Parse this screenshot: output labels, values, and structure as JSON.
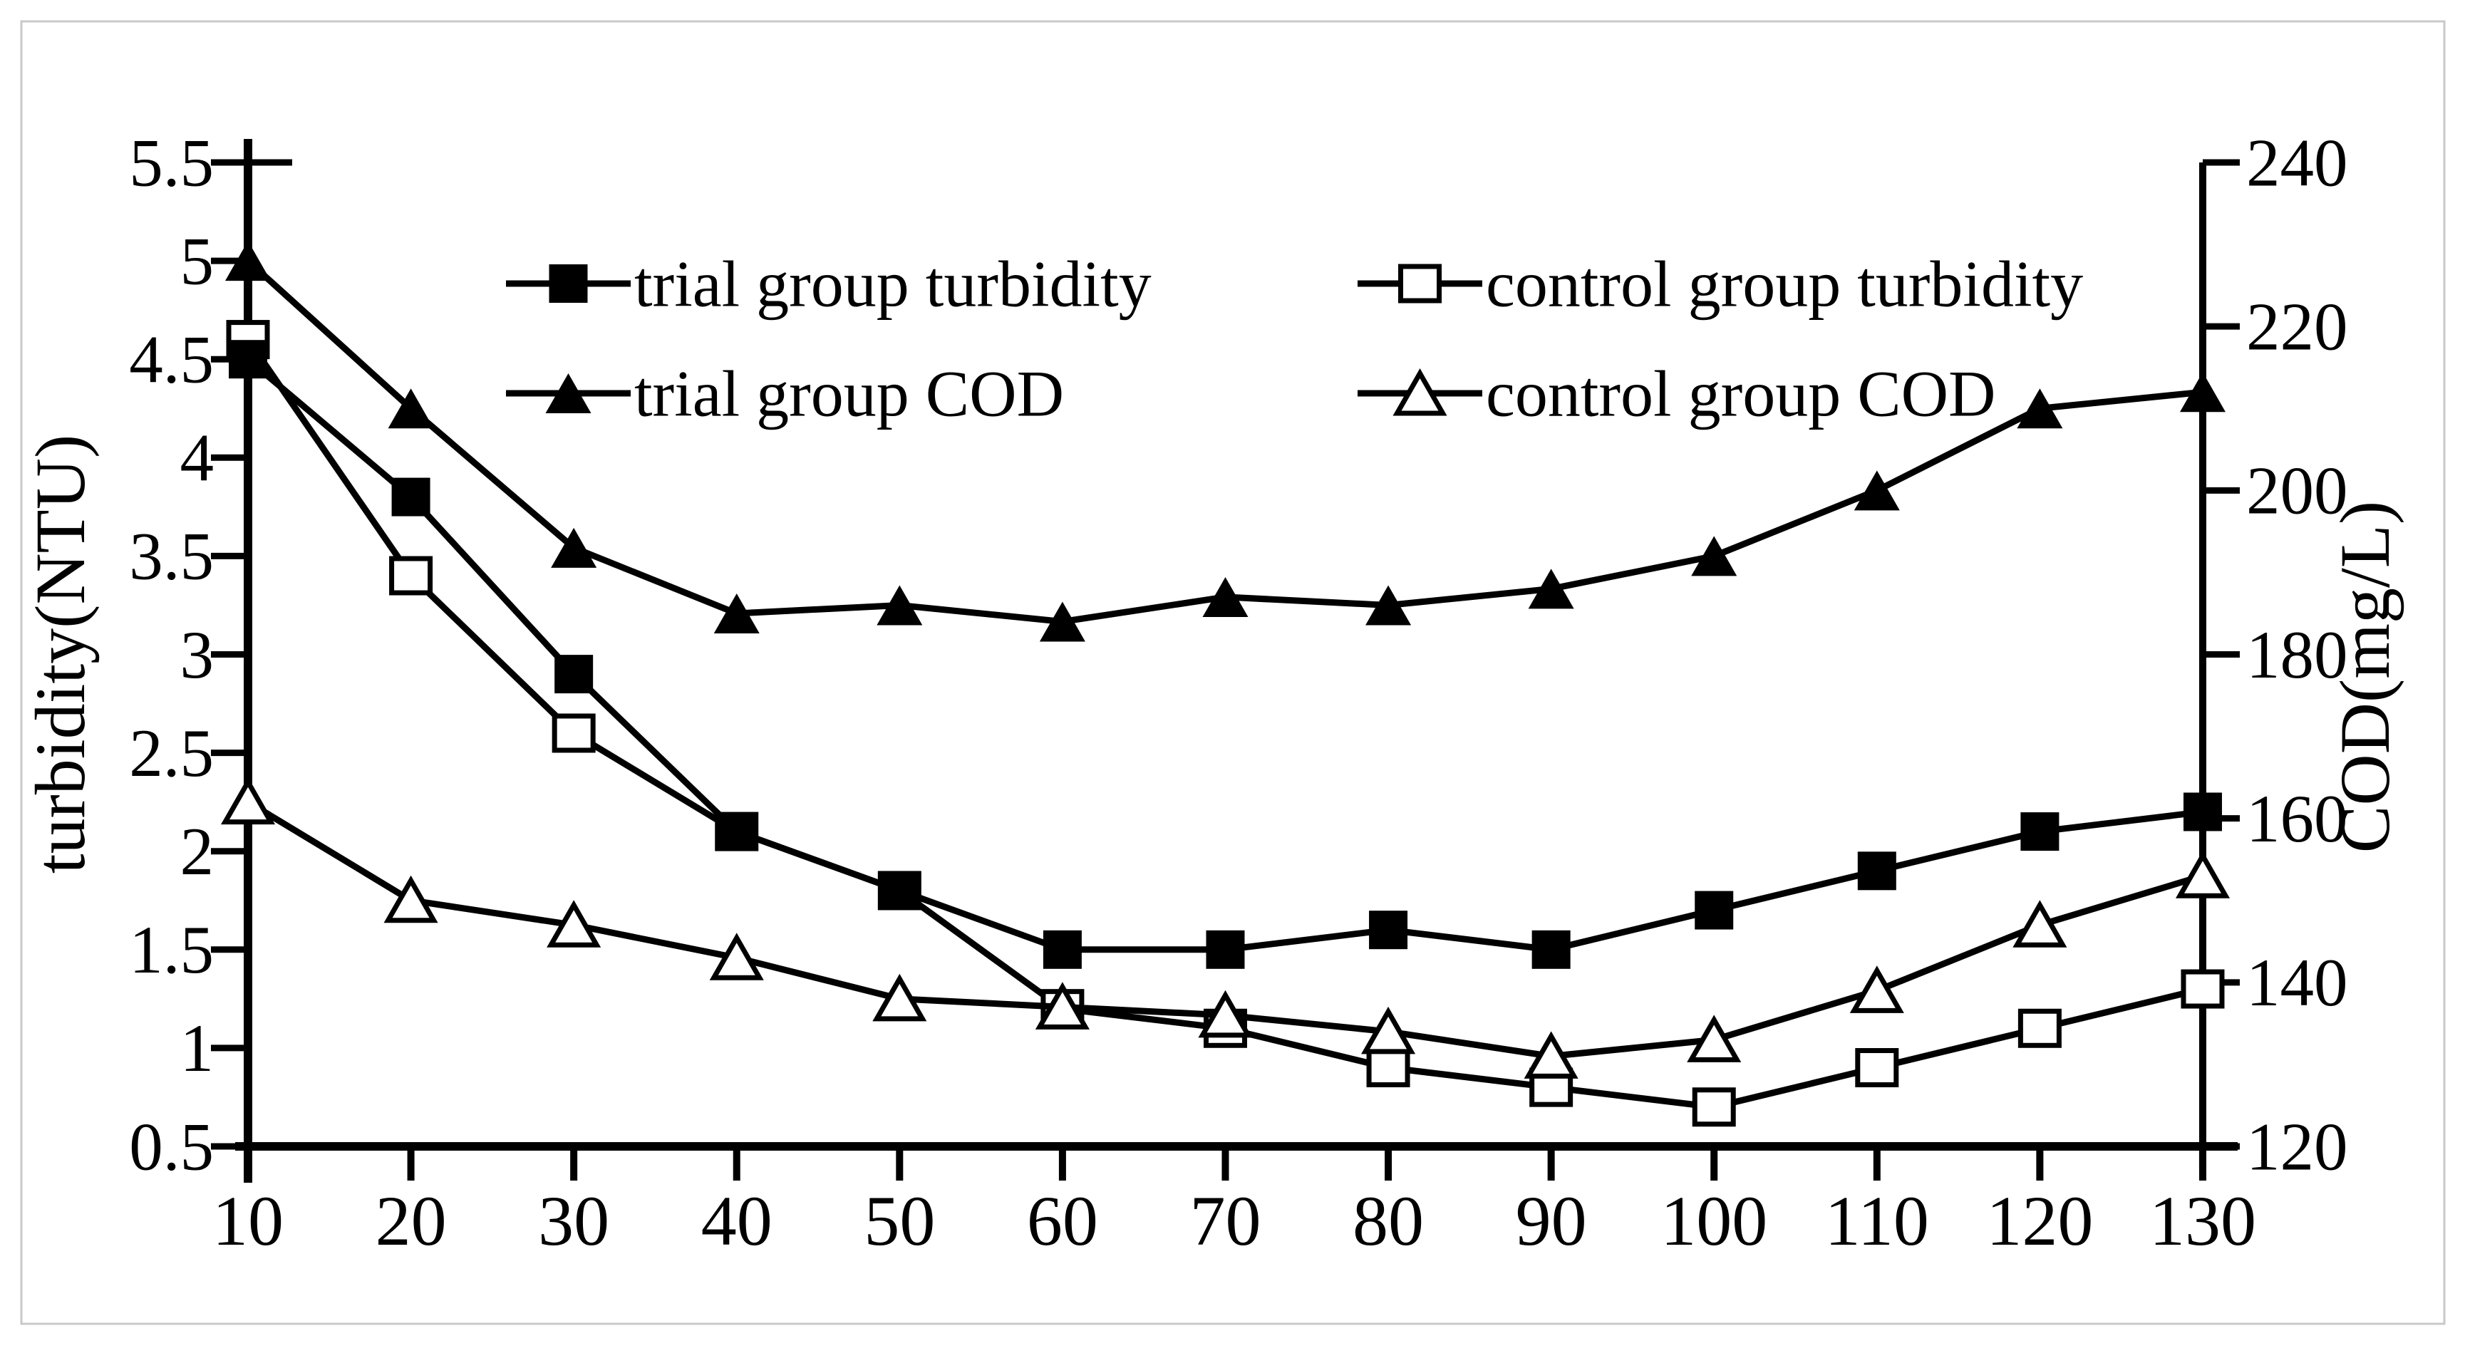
{
  "figure": {
    "background": "#ffffff",
    "border_color": "#c9c9c9",
    "line_color": "#000000"
  },
  "chart_data": {
    "type": "line",
    "x": [
      10,
      20,
      30,
      40,
      50,
      60,
      70,
      80,
      90,
      100,
      110,
      120,
      130
    ],
    "x_axis": {
      "tick_labels": [
        "10",
        "20",
        "30",
        "40",
        "50",
        "60",
        "70",
        "80",
        "90",
        "100",
        "110",
        "120",
        "130"
      ],
      "range": [
        10,
        130
      ]
    },
    "left_axis": {
      "title": "turbidity(NTU)",
      "ticks": [
        0.5,
        1,
        1.5,
        2,
        2.5,
        3,
        3.5,
        4,
        4.5,
        5,
        5.5
      ],
      "tick_labels": [
        "0.5",
        "1",
        "1.5",
        "2",
        "2.5",
        "3",
        "3.5",
        "4",
        "4.5",
        "5",
        "5.5"
      ],
      "range": [
        0.5,
        5.5
      ]
    },
    "right_axis": {
      "title": "COD(mg/L)",
      "ticks": [
        120,
        140,
        160,
        180,
        200,
        220,
        240
      ],
      "tick_labels": [
        "120",
        "140",
        "160",
        "180",
        "200",
        "220",
        "240"
      ],
      "range": [
        120,
        240
      ]
    },
    "series": [
      {
        "name": "control group turbidity",
        "axis": "left",
        "marker": "open-square",
        "values": [
          4.6,
          3.4,
          2.6,
          2.1,
          1.8,
          1.2,
          1.1,
          0.9,
          0.8,
          0.7,
          0.9,
          1.1,
          1.3
        ]
      },
      {
        "name": "control group COD",
        "axis": "right",
        "marker": "open-triangle",
        "values": [
          162,
          150,
          147,
          143,
          138,
          137,
          136,
          134,
          131,
          133,
          139,
          147,
          153
        ]
      },
      {
        "name": "trial group COD",
        "axis": "right",
        "marker": "filled-triangle",
        "values": [
          228,
          210,
          193,
          185,
          186,
          184,
          187,
          186,
          188,
          192,
          200,
          210,
          212
        ]
      },
      {
        "name": "trial group turbidity",
        "axis": "left",
        "marker": "filled-square",
        "values": [
          4.5,
          3.8,
          2.9,
          2.1,
          1.8,
          1.5,
          1.5,
          1.6,
          1.5,
          1.7,
          1.9,
          2.1,
          2.2
        ]
      }
    ],
    "legend": {
      "rows": [
        [
          "trial group turbidity",
          "control group turbidity"
        ],
        [
          "trial group COD",
          "control group COD"
        ]
      ]
    },
    "grid": false
  }
}
